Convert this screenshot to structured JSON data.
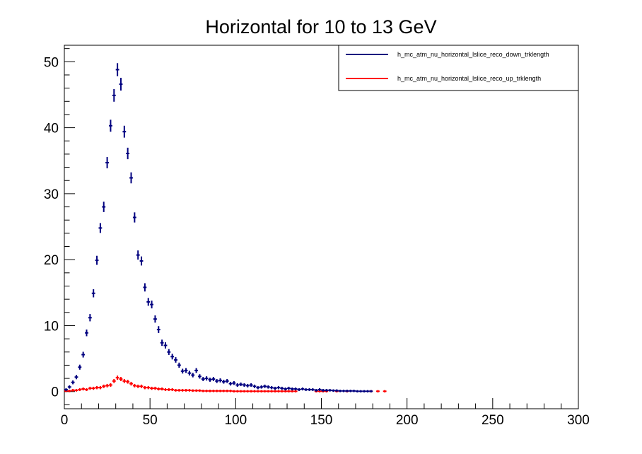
{
  "chart_data": {
    "type": "scatter",
    "title": "Horizontal for 10 to 13 GeV",
    "xlabel": "",
    "ylabel": "",
    "xlim": [
      0,
      300
    ],
    "ylim": [
      -2.6,
      52.5
    ],
    "x_ticks": [
      0,
      50,
      100,
      150,
      200,
      250,
      300
    ],
    "y_ticks": [
      0,
      10,
      20,
      30,
      40,
      50
    ],
    "grid": false,
    "legend_position": "top-right",
    "series": [
      {
        "name": "h_mc_atm_nu_horizontal_lslice_reco_down_trklength",
        "color": "#00007f",
        "points": [
          [
            1,
            0.3
          ],
          [
            3,
            0.7
          ],
          [
            5,
            1.4
          ],
          [
            7,
            2.2
          ],
          [
            9,
            3.7
          ],
          [
            11,
            5.6
          ],
          [
            13,
            8.9
          ],
          [
            15,
            11.2
          ],
          [
            17,
            14.9
          ],
          [
            19,
            19.9
          ],
          [
            21,
            24.8
          ],
          [
            23,
            28.0
          ],
          [
            25,
            34.7
          ],
          [
            27,
            40.3
          ],
          [
            29,
            44.9
          ],
          [
            31,
            48.8
          ],
          [
            33,
            46.6
          ],
          [
            35,
            39.4
          ],
          [
            37,
            36.1
          ],
          [
            39,
            32.4
          ],
          [
            41,
            26.4
          ],
          [
            43,
            20.7
          ],
          [
            45,
            19.8
          ],
          [
            47,
            15.8
          ],
          [
            49,
            13.6
          ],
          [
            51,
            13.2
          ],
          [
            53,
            11.0
          ],
          [
            55,
            9.4
          ],
          [
            57,
            7.4
          ],
          [
            59,
            7.0
          ],
          [
            61,
            6.0
          ],
          [
            63,
            5.3
          ],
          [
            65,
            4.8
          ],
          [
            67,
            4.0
          ],
          [
            69,
            3.1
          ],
          [
            71,
            3.2
          ],
          [
            73,
            2.8
          ],
          [
            75,
            2.5
          ],
          [
            77,
            3.2
          ],
          [
            79,
            2.3
          ],
          [
            81,
            1.9
          ],
          [
            83,
            2.0
          ],
          [
            85,
            1.8
          ],
          [
            87,
            1.9
          ],
          [
            89,
            1.6
          ],
          [
            91,
            1.7
          ],
          [
            93,
            1.5
          ],
          [
            95,
            1.6
          ],
          [
            97,
            1.2
          ],
          [
            99,
            1.3
          ],
          [
            101,
            1.0
          ],
          [
            103,
            1.1
          ],
          [
            105,
            1.0
          ],
          [
            107,
            0.9
          ],
          [
            109,
            1.0
          ],
          [
            111,
            0.8
          ],
          [
            113,
            0.6
          ],
          [
            115,
            0.7
          ],
          [
            117,
            0.8
          ],
          [
            119,
            0.7
          ],
          [
            121,
            0.6
          ],
          [
            123,
            0.5
          ],
          [
            125,
            0.6
          ],
          [
            127,
            0.5
          ],
          [
            129,
            0.4
          ],
          [
            131,
            0.5
          ],
          [
            133,
            0.4
          ],
          [
            135,
            0.4
          ],
          [
            137,
            0.3
          ],
          [
            139,
            0.4
          ],
          [
            141,
            0.3
          ],
          [
            143,
            0.3
          ],
          [
            145,
            0.3
          ],
          [
            147,
            0.2
          ],
          [
            149,
            0.3
          ],
          [
            151,
            0.2
          ],
          [
            153,
            0.2
          ],
          [
            155,
            0.2
          ],
          [
            157,
            0.15
          ],
          [
            159,
            0.15
          ],
          [
            161,
            0.1
          ],
          [
            163,
            0.1
          ],
          [
            165,
            0.1
          ],
          [
            167,
            0.1
          ],
          [
            169,
            0.1
          ],
          [
            171,
            0.05
          ],
          [
            173,
            0.05
          ],
          [
            175,
            0.05
          ],
          [
            177,
            0.05
          ],
          [
            179,
            0.05
          ]
        ]
      },
      {
        "name": "h_mc_atm_nu_horizontal_lslice_reco_up_trklength",
        "color": "#ff0000",
        "points": [
          [
            1,
            0.1
          ],
          [
            3,
            0.1
          ],
          [
            5,
            0.2
          ],
          [
            7,
            0.2
          ],
          [
            9,
            0.3
          ],
          [
            11,
            0.4
          ],
          [
            13,
            0.3
          ],
          [
            15,
            0.5
          ],
          [
            17,
            0.5
          ],
          [
            19,
            0.6
          ],
          [
            21,
            0.6
          ],
          [
            23,
            0.8
          ],
          [
            25,
            0.9
          ],
          [
            27,
            1.0
          ],
          [
            29,
            1.6
          ],
          [
            31,
            2.1
          ],
          [
            33,
            1.9
          ],
          [
            35,
            1.6
          ],
          [
            37,
            1.5
          ],
          [
            39,
            1.2
          ],
          [
            41,
            0.9
          ],
          [
            43,
            0.8
          ],
          [
            45,
            0.8
          ],
          [
            47,
            0.6
          ],
          [
            49,
            0.6
          ],
          [
            51,
            0.5
          ],
          [
            53,
            0.5
          ],
          [
            55,
            0.4
          ],
          [
            57,
            0.4
          ],
          [
            59,
            0.3
          ],
          [
            61,
            0.3
          ],
          [
            63,
            0.3
          ],
          [
            65,
            0.2
          ],
          [
            67,
            0.2
          ],
          [
            69,
            0.2
          ],
          [
            71,
            0.2
          ],
          [
            73,
            0.2
          ],
          [
            75,
            0.15
          ],
          [
            77,
            0.15
          ],
          [
            79,
            0.15
          ],
          [
            81,
            0.1
          ],
          [
            83,
            0.1
          ],
          [
            85,
            0.1
          ],
          [
            87,
            0.1
          ],
          [
            89,
            0.1
          ],
          [
            91,
            0.1
          ],
          [
            93,
            0.1
          ],
          [
            95,
            0.1
          ],
          [
            97,
            0.1
          ],
          [
            99,
            0.05
          ],
          [
            101,
            0.05
          ],
          [
            103,
            0.05
          ],
          [
            105,
            0.05
          ],
          [
            107,
            0.05
          ],
          [
            109,
            0.05
          ],
          [
            111,
            0.05
          ],
          [
            113,
            0.05
          ],
          [
            115,
            0.05
          ],
          [
            117,
            0.05
          ],
          [
            119,
            0.05
          ],
          [
            121,
            0.05
          ],
          [
            123,
            0.05
          ],
          [
            125,
            0.05
          ],
          [
            127,
            0.05
          ],
          [
            129,
            0.05
          ],
          [
            131,
            0.05
          ],
          [
            133,
            0.05
          ],
          [
            135,
            0.05
          ],
          [
            147,
            0.05
          ],
          [
            149,
            0.05
          ],
          [
            151,
            0.05
          ],
          [
            153,
            0.05
          ],
          [
            159,
            0.05
          ],
          [
            165,
            0.05
          ],
          [
            179,
            0.05
          ],
          [
            183,
            0.05
          ],
          [
            187,
            0.05
          ]
        ]
      }
    ]
  }
}
